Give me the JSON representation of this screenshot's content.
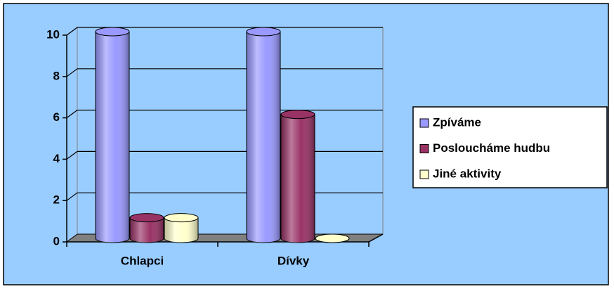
{
  "chart_data": {
    "type": "bar3d-cylinder",
    "categories": [
      "Chlapci",
      "Dívky"
    ],
    "series": [
      {
        "name": "Zpíváme",
        "color": "#9999ff",
        "values": [
          10,
          10
        ]
      },
      {
        "name": "Posloucháme hudbu",
        "color": "#993366",
        "values": [
          1,
          6
        ]
      },
      {
        "name": "Jiné aktivity",
        "color": "#ffffcc",
        "values": [
          1,
          0
        ]
      }
    ],
    "ylim": [
      0,
      10
    ],
    "yticks": [
      0,
      2,
      4,
      6,
      8,
      10
    ],
    "grid": true,
    "legend": "right"
  }
}
